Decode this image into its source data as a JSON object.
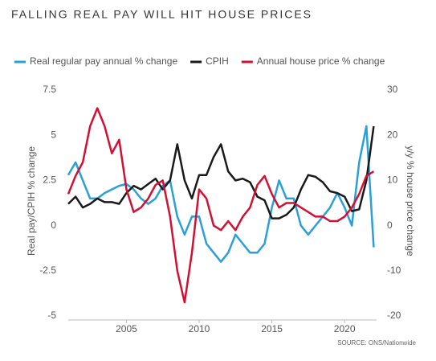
{
  "chart_data": {
    "type": "line",
    "title": "FALLING REAL PAY WILL HIT HOUSE PRICES",
    "y_label": "Real pay/CPIH % change",
    "y2_label": "y/y % house price change",
    "source": "SOURCE: ONS/Nationwide",
    "x": [
      2001,
      2001.5,
      2002,
      2002.5,
      2003,
      2003.5,
      2004,
      2004.5,
      2005,
      2005.5,
      2006,
      2006.5,
      2007,
      2007.5,
      2008,
      2008.5,
      2009,
      2009.5,
      2010,
      2010.5,
      2011,
      2011.5,
      2012,
      2012.5,
      2013,
      2013.5,
      2014,
      2014.5,
      2015,
      2015.5,
      2016,
      2016.5,
      2017,
      2017.5,
      2018,
      2018.5,
      2019,
      2019.5,
      2020,
      2020.5,
      2021,
      2021.5,
      2022
    ],
    "series": [
      {
        "name": "Real regular pay annual % change",
        "color": "#2a9fd8",
        "axis": "y",
        "values": [
          2.8,
          3.5,
          2.5,
          1.5,
          1.5,
          1.8,
          2.0,
          2.2,
          2.3,
          2.0,
          1.5,
          1.2,
          1.5,
          2.2,
          2.5,
          0.5,
          -0.5,
          0.5,
          0.5,
          -1.0,
          -1.5,
          -2.0,
          -1.5,
          -0.5,
          -1.0,
          -1.5,
          -1.5,
          -1.0,
          1.0,
          2.5,
          1.5,
          1.5,
          0.0,
          -0.5,
          0.0,
          0.5,
          1.0,
          1.8,
          1.0,
          0.0,
          3.5,
          5.5,
          -1.2
        ]
      },
      {
        "name": "CPIH",
        "color": "#1a1a1a",
        "axis": "y",
        "values": [
          1.2,
          1.6,
          1.0,
          1.2,
          1.5,
          1.3,
          1.3,
          1.2,
          1.8,
          2.2,
          2.0,
          2.3,
          2.6,
          2.0,
          2.5,
          4.5,
          2.5,
          1.5,
          2.8,
          2.8,
          3.8,
          4.5,
          3.0,
          2.5,
          2.6,
          2.4,
          1.6,
          1.4,
          0.4,
          0.4,
          0.6,
          1.0,
          2.0,
          2.8,
          2.7,
          2.4,
          1.9,
          1.8,
          1.6,
          0.8,
          0.9,
          2.5,
          5.5
        ]
      },
      {
        "name": "Annual house price % change",
        "color": "#d21034",
        "axis": "y2",
        "values": [
          7,
          11,
          14,
          22,
          26,
          22,
          16,
          19,
          8,
          3,
          4,
          6,
          9,
          10,
          2,
          -10,
          -17,
          -6,
          8,
          6,
          0,
          -1,
          1,
          -1,
          2,
          4,
          9,
          11,
          7,
          4,
          5,
          5,
          4,
          3,
          2,
          2,
          1,
          1,
          2,
          4,
          7,
          11,
          12
        ]
      }
    ],
    "xlim": [
      2001,
      2022.2
    ],
    "xticks": [
      2005,
      2010,
      2015,
      2020
    ],
    "ylim": [
      -5,
      7.5
    ],
    "yticks": [
      7.5,
      5,
      2.5,
      0,
      -2.5,
      -5
    ],
    "y2lim": [
      -20,
      30
    ],
    "y2ticks": [
      30,
      20,
      10,
      0,
      -10,
      -20
    ]
  }
}
